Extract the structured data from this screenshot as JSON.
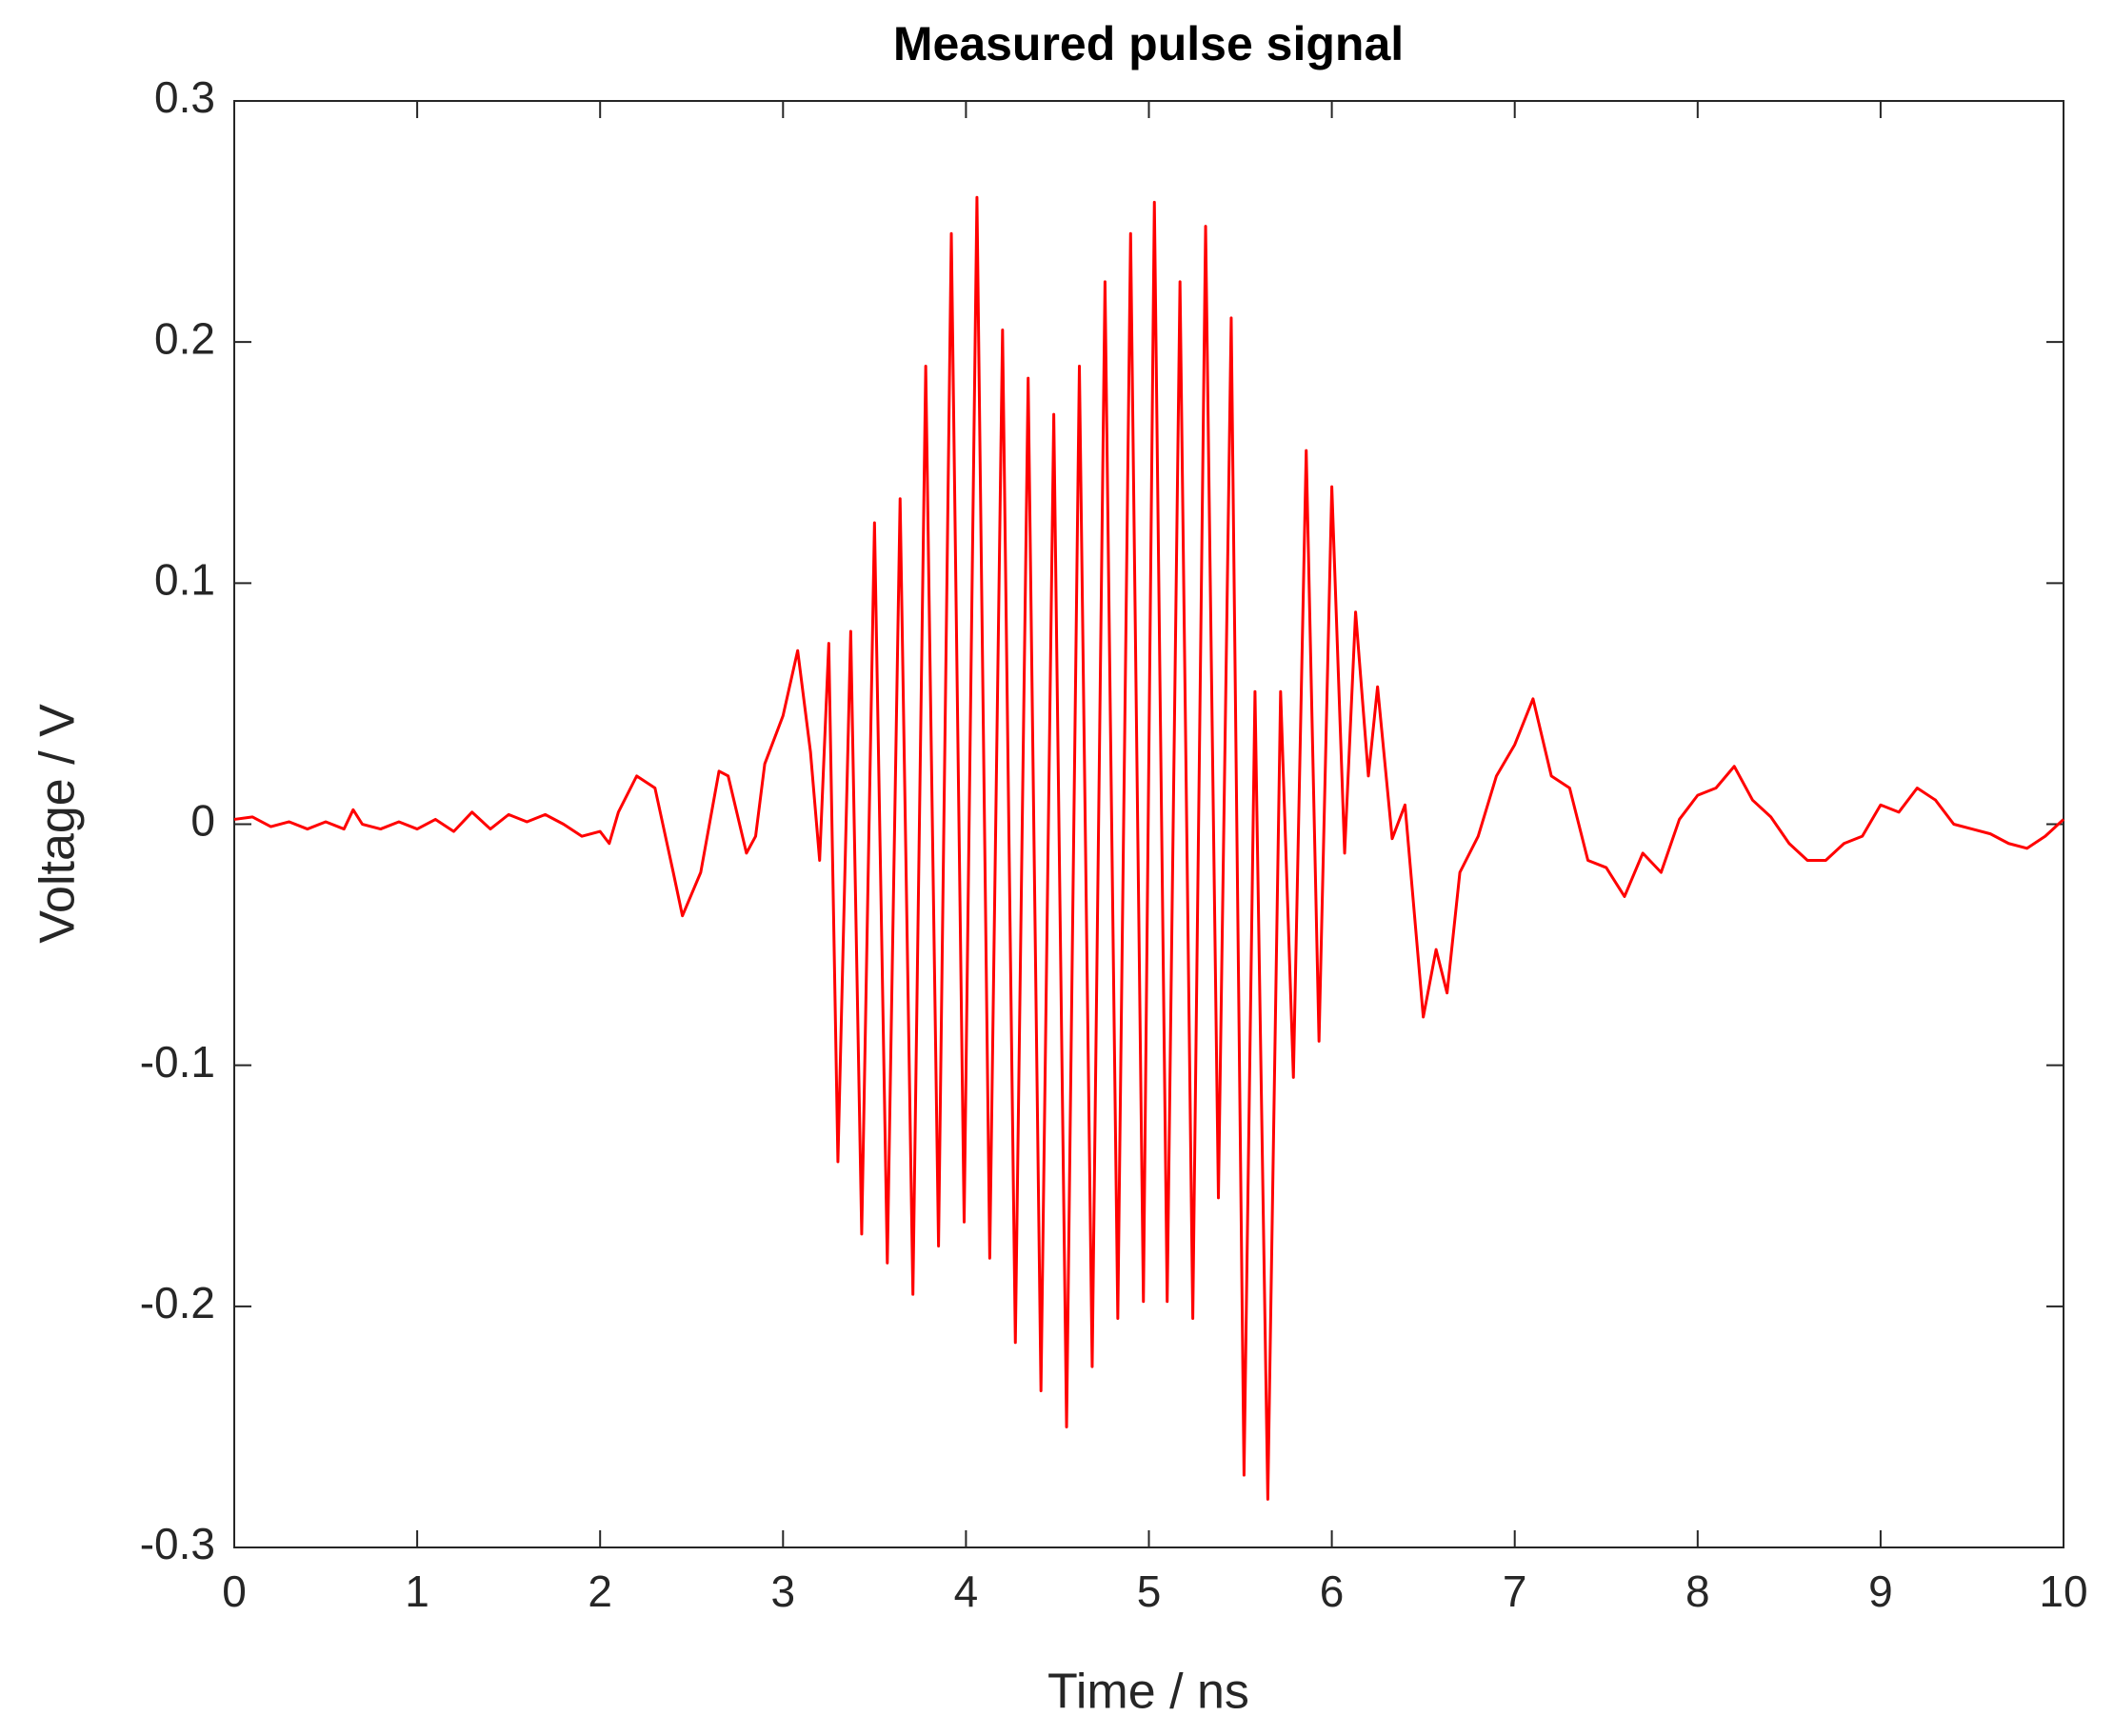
{
  "chart_data": {
    "type": "line",
    "title": "Measured pulse signal",
    "x_label": "Time / ns",
    "y_label": "Voltage / V",
    "x": [
      0,
      0.1,
      0.2,
      0.3,
      0.4,
      0.5,
      0.6,
      0.65,
      0.7,
      0.8,
      0.9,
      1.0,
      1.1,
      1.2,
      1.3,
      1.4,
      1.5,
      1.6,
      1.7,
      1.8,
      1.9,
      2.0,
      2.05,
      2.1,
      2.2,
      2.3,
      2.4,
      2.45,
      2.55,
      2.65,
      2.7,
      2.8,
      2.85,
      2.9,
      3.0,
      3.08,
      3.15,
      3.2,
      3.25,
      3.3,
      3.37,
      3.43,
      3.5,
      3.57,
      3.64,
      3.71,
      3.78,
      3.85,
      3.92,
      3.99,
      4.06,
      4.13,
      4.2,
      4.27,
      4.34,
      4.41,
      4.48,
      4.55,
      4.62,
      4.69,
      4.76,
      4.83,
      4.9,
      4.97,
      5.03,
      5.1,
      5.17,
      5.24,
      5.31,
      5.38,
      5.45,
      5.52,
      5.58,
      5.65,
      5.72,
      5.79,
      5.86,
      5.93,
      6.0,
      6.07,
      6.13,
      6.2,
      6.25,
      6.33,
      6.4,
      6.5,
      6.57,
      6.63,
      6.7,
      6.8,
      6.9,
      7.0,
      7.1,
      7.2,
      7.3,
      7.4,
      7.5,
      7.6,
      7.7,
      7.8,
      7.9,
      8.0,
      8.1,
      8.2,
      8.3,
      8.4,
      8.5,
      8.6,
      8.7,
      8.8,
      8.9,
      9.0,
      9.1,
      9.2,
      9.3,
      9.4,
      9.5,
      9.6,
      9.7,
      9.8,
      9.9,
      10.0
    ],
    "values": [
      0.002,
      0.003,
      -0.001,
      0.001,
      -0.002,
      0.001,
      -0.002,
      0.006,
      0,
      -0.002,
      0.001,
      -0.002,
      0.002,
      -0.003,
      0.005,
      -0.002,
      0.004,
      0.001,
      0.004,
      0,
      -0.005,
      -0.003,
      -0.008,
      0.005,
      0.02,
      0.015,
      -0.02,
      -0.038,
      -0.02,
      0.022,
      0.02,
      -0.012,
      -0.005,
      0.025,
      0.045,
      0.072,
      0.03,
      -0.015,
      0.075,
      -0.14,
      0.08,
      -0.17,
      0.125,
      -0.182,
      0.135,
      -0.195,
      0.19,
      -0.175,
      0.245,
      -0.165,
      0.26,
      -0.18,
      0.205,
      -0.215,
      0.185,
      -0.235,
      0.17,
      -0.25,
      0.19,
      -0.225,
      0.225,
      -0.205,
      0.245,
      -0.198,
      0.258,
      -0.198,
      0.225,
      -0.205,
      0.248,
      -0.155,
      0.21,
      -0.27,
      0.055,
      -0.28,
      0.055,
      -0.105,
      0.155,
      -0.09,
      0.14,
      -0.012,
      0.088,
      0.02,
      0.057,
      -0.006,
      0.008,
      -0.08,
      -0.052,
      -0.07,
      -0.02,
      -0.005,
      0.02,
      0.033,
      0.052,
      0.02,
      0.015,
      -0.015,
      -0.018,
      -0.03,
      -0.012,
      -0.02,
      0.002,
      0.012,
      0.015,
      0.024,
      0.01,
      0.003,
      -0.008,
      -0.015,
      -0.015,
      -0.008,
      -0.005,
      0.008,
      0.005,
      0.015,
      0.01,
      0,
      -0.002,
      -0.004,
      -0.008,
      -0.01,
      -0.005,
      0.002
    ],
    "color": "#ff0000",
    "xlim": [
      0,
      10
    ],
    "xticks": [
      0,
      1,
      2,
      3,
      4,
      5,
      6,
      7,
      8,
      9,
      10
    ],
    "ylim": [
      -0.3,
      0.3
    ],
    "yticks": [
      -0.3,
      -0.2,
      -0.1,
      0,
      0.1,
      0.2,
      0.3
    ],
    "grid": false
  }
}
